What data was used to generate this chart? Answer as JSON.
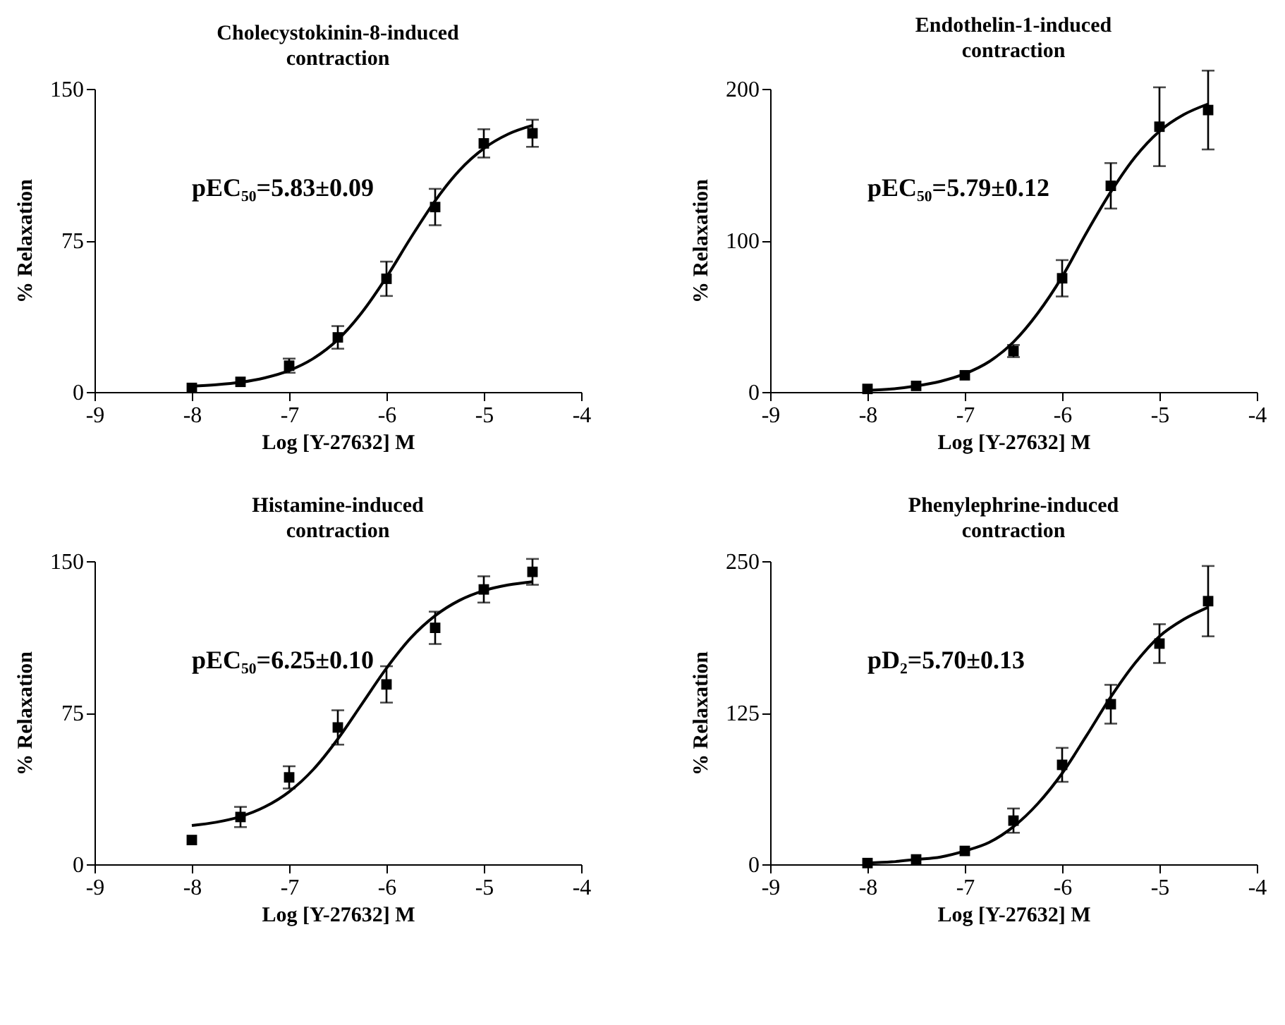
{
  "chart_data": [
    {
      "type": "scatter",
      "title": "Cholecystokinin-8-induced contraction",
      "xlabel": "Log [Y-27632] M",
      "ylabel": "% Relaxation",
      "annotations": [
        "pEC₅₀=5.83±0.09"
      ],
      "x": [
        -8,
        -7.5,
        -7,
        -6.5,
        -6,
        -5.5,
        -5,
        -4.5
      ],
      "xlim": [
        -9,
        -4
      ],
      "xticks": [
        -9,
        -8,
        -7,
        -6,
        -5,
        -4
      ],
      "ylim": [
        0,
        150
      ],
      "yticks": [
        0,
        75,
        150
      ],
      "series": [
        {
          "marker": "square",
          "color": "#000000",
          "values": [
            2,
            5,
            13,
            27,
            56,
            91.5,
            123,
            128
          ],
          "errors": [
            null,
            null,
            3.5,
            5.6,
            8.5,
            9,
            7,
            6.7
          ]
        },
        {
          "type": "line",
          "color": "#000000",
          "x": [
            -8,
            -7.75,
            -7.5,
            -7.25,
            -7,
            -6.75,
            -6.5,
            -6.25,
            -6,
            -5.75,
            -5.5,
            -5.25,
            -5,
            -4.75,
            -4.5
          ],
          "values": [
            2.9,
            3.6,
            4.8,
            7,
            10.6,
            16.6,
            25.9,
            39.5,
            56.8,
            76.3,
            94.6,
            109.7,
            120.5,
            127.6,
            131.9
          ]
        }
      ]
    },
    {
      "type": "scatter",
      "title": "Endothelin-1-induced contraction",
      "xlabel": "Log [Y-27632] M",
      "ylabel": "% Relaxation",
      "annotations": [
        "pEC₅₀=5.79±0.12"
      ],
      "x": [
        -8,
        -7.5,
        -7,
        -6.5,
        -6,
        -5.5,
        -5,
        -4.5
      ],
      "xlim": [
        -9,
        -4
      ],
      "xticks": [
        -9,
        -8,
        -7,
        -6,
        -5,
        -4
      ],
      "ylim": [
        0,
        200
      ],
      "yticks": [
        0,
        100,
        200
      ],
      "series": [
        {
          "marker": "square",
          "color": "#000000",
          "values": [
            2,
            4,
            11,
            27,
            75,
            136,
            175,
            186
          ],
          "errors": [
            null,
            null,
            null,
            4,
            12,
            15,
            26,
            26
          ]
        },
        {
          "type": "line",
          "color": "#000000",
          "x": [
            -8,
            -7.75,
            -7.5,
            -7.25,
            -7,
            -6.75,
            -6.5,
            -6.25,
            -6,
            -5.75,
            -5.5,
            -5.25,
            -5,
            -4.75,
            -4.5
          ],
          "values": [
            1,
            2,
            4,
            7,
            12,
            20,
            33,
            52,
            76,
            105,
            132,
            155,
            172,
            183,
            190
          ]
        }
      ]
    },
    {
      "type": "scatter",
      "title": "Histamine-induced contraction",
      "xlabel": "Log [Y-27632] M",
      "ylabel": "% Relaxation",
      "annotations": [
        "pEC₅₀=6.25±0.10"
      ],
      "x": [
        -8,
        -7.5,
        -7,
        -6.5,
        -6,
        -5.5,
        -5,
        -4.5
      ],
      "xlim": [
        -9,
        -4
      ],
      "xticks": [
        -9,
        -8,
        -7,
        -6,
        -5,
        -4
      ],
      "ylim": [
        0,
        150
      ],
      "yticks": [
        0,
        75,
        150
      ],
      "series": [
        {
          "marker": "square",
          "color": "#000000",
          "values": [
            12,
            23.4,
            43,
            67.7,
            89,
            117,
            136,
            144.7
          ],
          "errors": [
            null,
            5,
            5.5,
            8.5,
            9,
            8,
            6.5,
            6.4
          ]
        },
        {
          "type": "line",
          "color": "#000000",
          "x": [
            -8,
            -7.75,
            -7.5,
            -7.25,
            -7,
            -6.75,
            -6.5,
            -6.25,
            -6,
            -5.75,
            -5.5,
            -5.25,
            -5,
            -4.75,
            -4.5
          ],
          "values": [
            19.2,
            20.8,
            23.6,
            28.4,
            35.9,
            47,
            62,
            79.5,
            97,
            112,
            123,
            130.6,
            135.4,
            138.2,
            139.8
          ]
        }
      ]
    },
    {
      "type": "scatter",
      "title": "Phenylephrine-induced contraction",
      "xlabel": "Log [Y-27632] M",
      "ylabel": "% Relaxation",
      "annotations": [
        "pD₂=5.70±0.13"
      ],
      "x": [
        -8,
        -7.5,
        -7,
        -6.5,
        -6,
        -5.5,
        -5,
        -4.5
      ],
      "xlim": [
        -9,
        -4
      ],
      "xticks": [
        -9,
        -8,
        -7,
        -6,
        -5,
        -4
      ],
      "ylim": [
        0,
        250
      ],
      "yticks": [
        0,
        125,
        250
      ],
      "series": [
        {
          "marker": "square",
          "color": "#000000",
          "values": [
            1,
            4,
            11,
            36,
            82,
            132,
            182,
            217
          ],
          "errors": [
            null,
            null,
            null,
            10,
            14,
            16,
            16,
            29
          ]
        },
        {
          "type": "line",
          "color": "#000000",
          "x": [
            -8,
            -7.75,
            -7.5,
            -7.25,
            -7,
            -6.75,
            -6.5,
            -6.25,
            -6,
            -5.75,
            -5.5,
            -5.25,
            -5,
            -4.75,
            -4.5
          ],
          "values": [
            1,
            2,
            4,
            6,
            11,
            18,
            31,
            50,
            75,
            106,
            138,
            166,
            188,
            202,
            212
          ]
        }
      ]
    }
  ]
}
